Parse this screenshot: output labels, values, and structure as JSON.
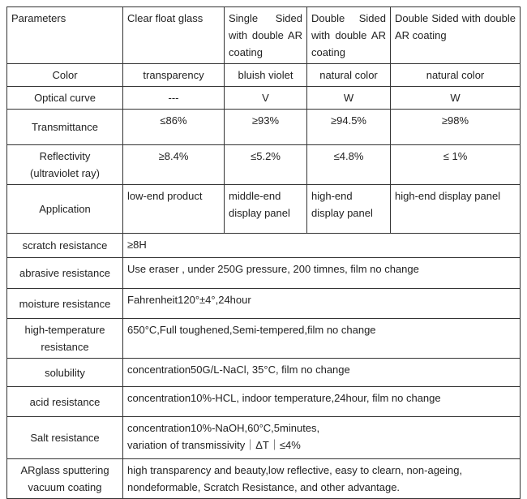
{
  "table": {
    "header": [
      "Parameters",
      "Clear float glass",
      "Single Sided with double AR coating",
      "Double Sided with double AR coating",
      "Double Sided with double AR coating"
    ],
    "rows": [
      [
        "Color",
        "transparency",
        "bluish violet",
        "natural color",
        "natural color"
      ],
      [
        "Optical curve",
        "---",
        "V",
        "W",
        "W"
      ],
      [
        "Transmittance",
        "≤86%",
        "≥93%",
        "≥94.5%",
        "≥98%"
      ],
      [
        "Reflectivity\n(ultraviolet ray)",
        "≥8.4%",
        "≤5.2%",
        "≤4.8%",
        "≤ 1%"
      ],
      [
        "Application",
        "low-end product",
        "middle-end display panel",
        "high-end display panel",
        "high-end display panel"
      ],
      [
        "scratch resistance",
        "≥8H"
      ],
      [
        "abrasive resistance",
        "Use eraser , under 250G pressure, 200 timnes, film no change"
      ],
      [
        "moisture resistance",
        "Fahrenheit120°±4°,24hour"
      ],
      [
        "high-temperature resistance",
        "650°C,Full toughened,Semi-tempered,film no change"
      ],
      [
        "solubility",
        "concentration50G/L-NaCl, 35°C, film no change"
      ],
      [
        "acid resistance",
        "concentration10%-HCL, indoor temperature,24hour, film no change"
      ],
      [
        "Salt resistance",
        "concentration10%-NaOH,60°C,5minutes,\nvariation of transmissivity｜ΔT｜≤4%"
      ],
      [
        "ARglass sputtering vacuum coating",
        "high transparency and beauty,low reflective, easy to clearn, non-ageing, nondeformable, Scratch Resistance, and other advantage."
      ]
    ]
  }
}
